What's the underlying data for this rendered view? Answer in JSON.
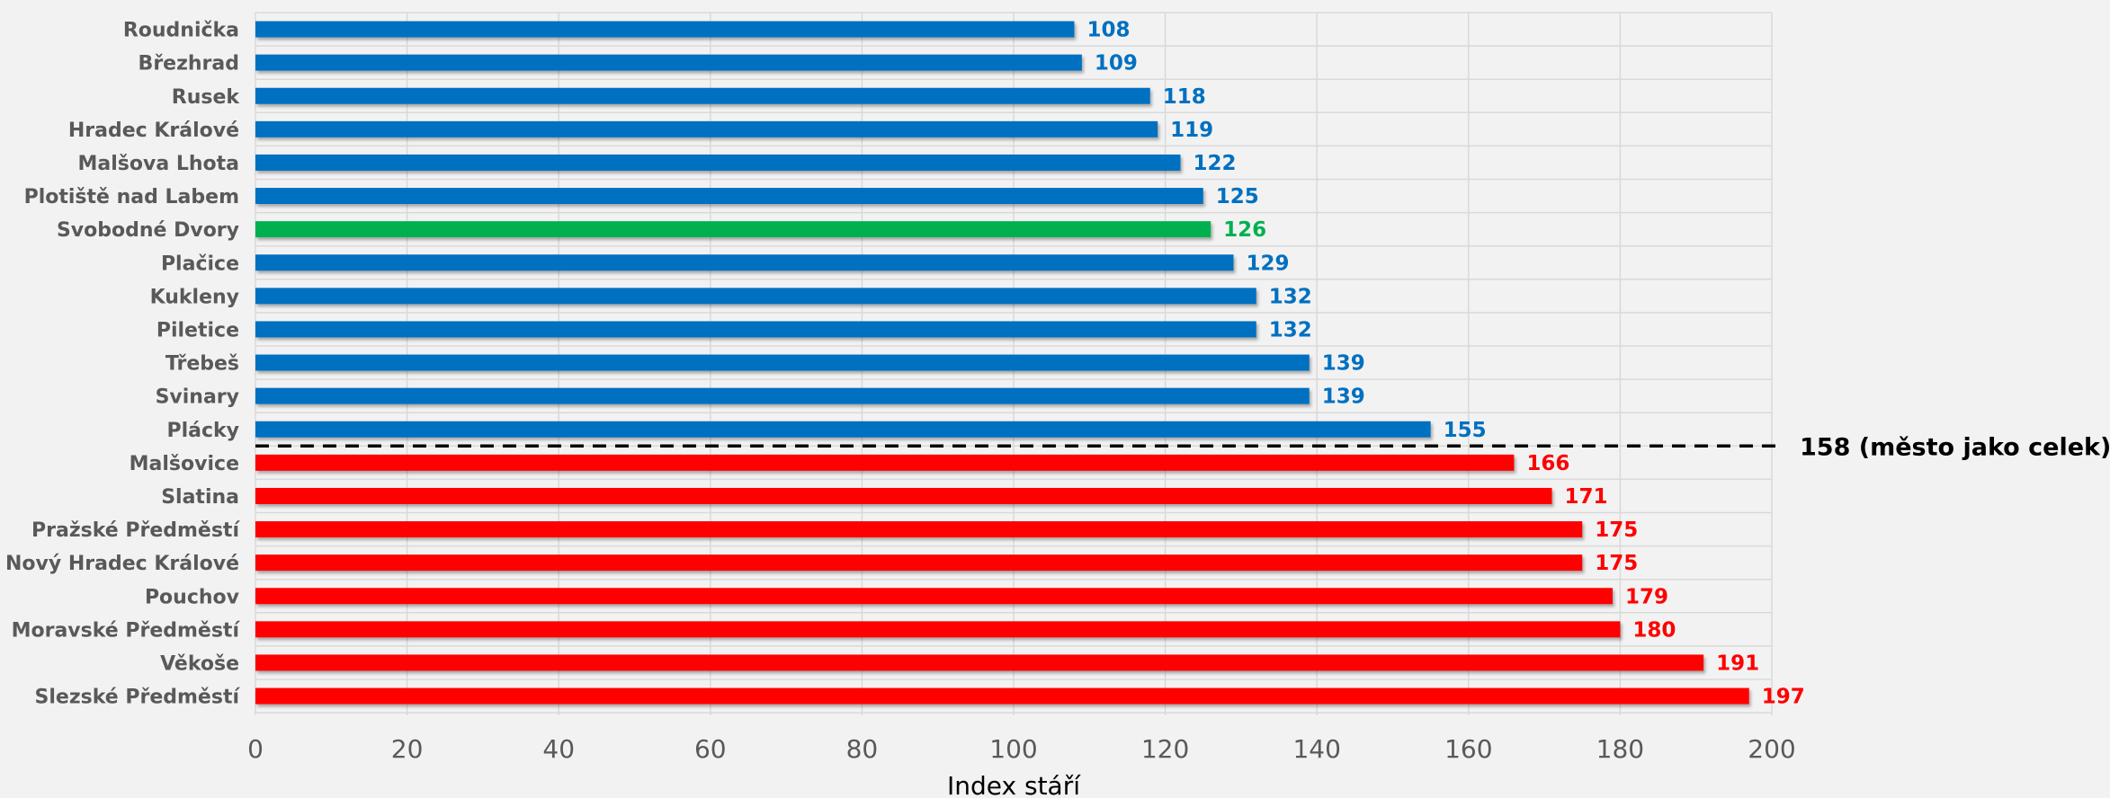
{
  "chart_data": {
    "type": "bar",
    "orientation": "horizontal",
    "xlabel": "Index stáří",
    "ylabel": "",
    "xlim": [
      0,
      200
    ],
    "xticks": [
      "0",
      "20",
      "40",
      "60",
      "80",
      "100",
      "120",
      "140",
      "160",
      "180",
      "200"
    ],
    "grid": true,
    "categories": [
      "Roudnička",
      "Březhrad",
      "Rusek",
      "Hradec Králové",
      "Malšova Lhota",
      "Plotiště nad Labem",
      "Svobodné Dvory",
      "Plačice",
      "Kukleny",
      "Piletice",
      "Třebeš",
      "Svinary",
      "Plácky",
      "Malšovice",
      "Slatina",
      "Pražské Předměstí",
      "Nový Hradec Králové",
      "Pouchov",
      "Moravské Předměstí",
      "Věkoše",
      "Slezské Předměstí"
    ],
    "values": [
      108,
      109,
      118,
      119,
      122,
      125,
      126,
      129,
      132,
      132,
      139,
      139,
      155,
      166,
      171,
      175,
      175,
      179,
      180,
      191,
      197
    ],
    "value_labels": [
      "108",
      "109",
      "118",
      "119",
      "122",
      "125",
      "126",
      "129",
      "132",
      "132",
      "139",
      "139",
      "155",
      "166",
      "171",
      "175",
      "175",
      "179",
      "180",
      "191",
      "197"
    ],
    "bar_groups": [
      "below",
      "below",
      "below",
      "below",
      "below",
      "below",
      "highlight",
      "below",
      "below",
      "below",
      "below",
      "below",
      "below",
      "above",
      "above",
      "above",
      "above",
      "above",
      "above",
      "above",
      "above"
    ],
    "reference_line": {
      "value": 158,
      "label": "158 (město jako celek)"
    },
    "colors": {
      "below": "#0070c0",
      "highlight": "#00b050",
      "above": "#ff0000",
      "grid": "#d9d9d9",
      "reference": "#000000"
    }
  }
}
